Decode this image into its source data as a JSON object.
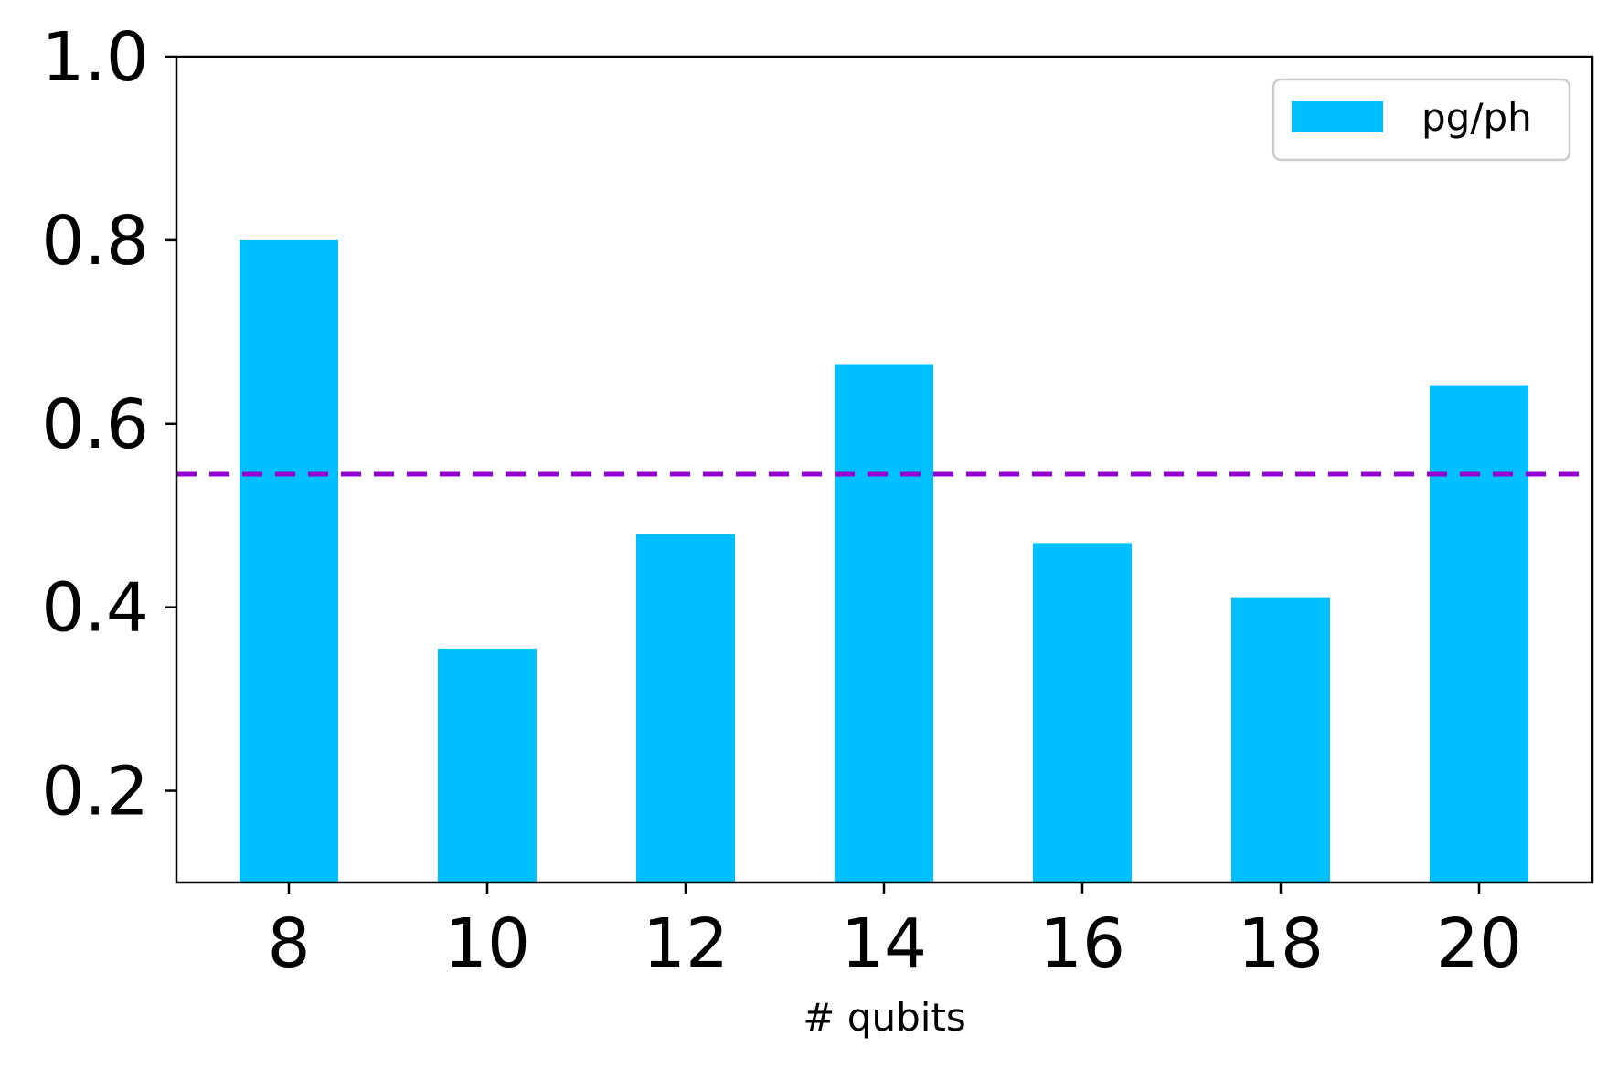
{
  "chart_data": {
    "type": "bar",
    "categories": [
      "8",
      "10",
      "12",
      "14",
      "16",
      "18",
      "20"
    ],
    "series": [
      {
        "name": "pg/ph",
        "values": [
          0.8,
          0.355,
          0.48,
          0.665,
          0.47,
          0.41,
          0.642
        ],
        "color": "#00bfff"
      }
    ],
    "reference_line": {
      "value": 0.545,
      "style": "dashed",
      "color": "#9400d3"
    },
    "xlabel": "# qubits",
    "ylabel": "",
    "ylim": [
      0.1,
      1.0
    ],
    "yticks": [
      "0.2",
      "0.4",
      "0.6",
      "0.8",
      "1.0"
    ],
    "grid": false,
    "legend": {
      "position": "top-right",
      "entries": [
        "pg/ph"
      ]
    }
  }
}
